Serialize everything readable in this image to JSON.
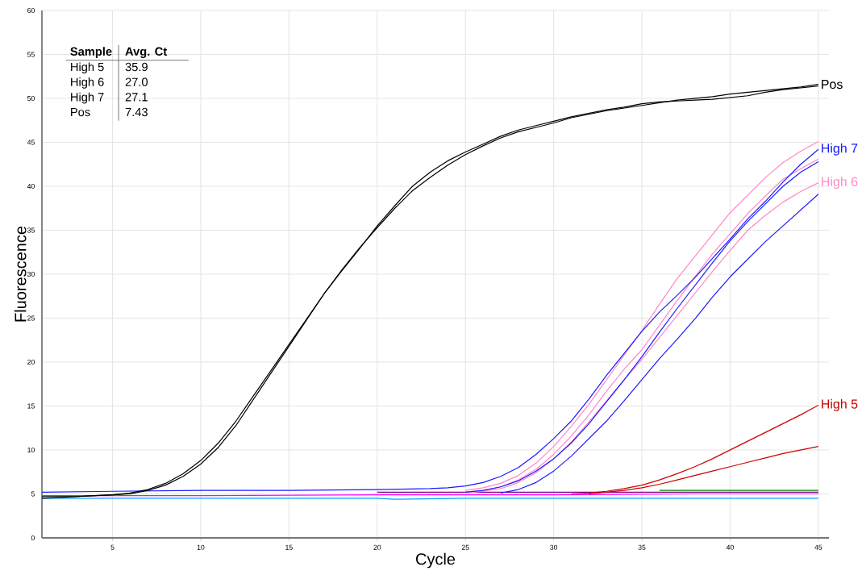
{
  "chart_data": {
    "type": "line",
    "xlabel": "Cycle",
    "ylabel": "Fluorescence",
    "xlim": [
      1,
      45.6
    ],
    "ylim": [
      0,
      60
    ],
    "xticks": [
      5,
      10,
      15,
      20,
      25,
      30,
      35,
      40,
      45
    ],
    "yticks": [
      0,
      5,
      10,
      15,
      20,
      25,
      30,
      35,
      40,
      45,
      50,
      55,
      60
    ],
    "grid": true,
    "marker": "none",
    "line_style": "solid",
    "annotations": [
      "Sample",
      "Avg. Ct",
      "High 5",
      "35.9",
      "High 6",
      "27.0",
      "High 7",
      "27.1",
      "Pos",
      "7.43"
    ],
    "series": [
      {
        "color": "#00a0ff",
        "x": [
          1,
          10,
          20,
          21,
          25,
          30,
          38,
          45
        ],
        "values": [
          4.5,
          4.5,
          4.5,
          4.4,
          4.5,
          4.5,
          4.5,
          4.5
        ]
      },
      {
        "color": "#ff00ff",
        "x": [
          1,
          10,
          20,
          30,
          38,
          45
        ],
        "values": [
          4.8,
          4.8,
          4.9,
          4.9,
          5.0,
          5.0
        ]
      },
      {
        "color": "#800080",
        "x": [
          20,
          30,
          38,
          45
        ],
        "values": [
          5.2,
          5.2,
          5.2,
          5.2
        ]
      },
      {
        "name": "High 5",
        "color": "#cc0000",
        "x": [
          31,
          32,
          33,
          34,
          35,
          36,
          37,
          38,
          39,
          40,
          41,
          42,
          43,
          44,
          45
        ],
        "values": [
          5.0,
          5.1,
          5.3,
          5.6,
          6.0,
          6.6,
          7.3,
          8.1,
          9.0,
          10.0,
          11.0,
          12.0,
          13.0,
          14.0,
          15.1
        ]
      },
      {
        "color": "#cc0000",
        "x": [
          32,
          33,
          34,
          35,
          36,
          37,
          38,
          39,
          40,
          41,
          42,
          43,
          44,
          45
        ],
        "values": [
          5.0,
          5.2,
          5.4,
          5.7,
          6.1,
          6.6,
          7.1,
          7.6,
          8.1,
          8.6,
          9.1,
          9.6,
          10.0,
          10.4
        ]
      },
      {
        "color": "#ff88c8",
        "x": [
          25,
          26,
          27,
          28,
          29,
          30,
          31,
          32,
          33,
          34,
          35,
          36,
          37,
          38,
          39,
          40,
          41,
          42,
          43,
          44,
          45
        ],
        "values": [
          5.4,
          5.7,
          6.2,
          7.1,
          8.5,
          10.4,
          12.7,
          15.2,
          18.0,
          20.8,
          23.6,
          26.6,
          29.5,
          32.0,
          34.5,
          37.0,
          39.0,
          41.0,
          42.7,
          44.0,
          45.1
        ]
      },
      {
        "color": "#ff88c8",
        "x": [
          25,
          26,
          27,
          28,
          29,
          30,
          31,
          32,
          33,
          34,
          35,
          36,
          37,
          38,
          39,
          40,
          41,
          42,
          43,
          44,
          45
        ],
        "values": [
          5.2,
          5.4,
          5.8,
          6.6,
          7.8,
          9.5,
          11.6,
          14.0,
          16.7,
          19.2,
          21.4,
          24.2,
          27.0,
          29.7,
          32.3,
          34.6,
          36.9,
          38.9,
          40.8,
          42.0,
          43.1
        ]
      },
      {
        "name": "High 6",
        "color": "#ff88c8",
        "x": [
          25,
          26,
          27,
          28,
          29,
          30,
          31,
          32,
          33,
          34,
          35,
          36,
          37,
          38,
          39,
          40,
          41,
          42,
          43,
          44,
          45
        ],
        "values": [
          5.1,
          5.3,
          5.6,
          6.3,
          7.4,
          9.0,
          10.9,
          13.2,
          15.6,
          18.0,
          20.3,
          22.8,
          25.3,
          27.8,
          30.3,
          32.7,
          35.0,
          36.7,
          38.2,
          39.4,
          40.4
        ]
      },
      {
        "name": "High 7",
        "color": "#1a1aff",
        "x": [
          1,
          5,
          10,
          15,
          20,
          23,
          24,
          25,
          26,
          27,
          28,
          29,
          30,
          31,
          32,
          33,
          34,
          35,
          36,
          37,
          38,
          39,
          40,
          41,
          42,
          43,
          44,
          45
        ],
        "values": [
          5.2,
          5.3,
          5.4,
          5.4,
          5.5,
          5.6,
          5.7,
          5.9,
          6.3,
          7.0,
          8.0,
          9.5,
          11.3,
          13.3,
          15.8,
          18.5,
          21.0,
          23.5,
          25.7,
          27.6,
          29.6,
          31.8,
          34.0,
          36.3,
          38.3,
          40.5,
          42.5,
          44.2
        ]
      },
      {
        "color": "#1a1aff",
        "x": [
          25,
          26,
          27,
          28,
          29,
          30,
          31,
          32,
          33,
          34,
          35,
          36,
          37,
          38,
          39,
          40,
          41,
          42,
          43,
          44,
          45
        ],
        "values": [
          5.2,
          5.4,
          5.8,
          6.5,
          7.6,
          9.0,
          10.8,
          13.0,
          15.5,
          18.0,
          20.6,
          23.4,
          26.1,
          28.7,
          31.3,
          33.8,
          36.0,
          38.0,
          40.0,
          41.6,
          42.8
        ]
      },
      {
        "color": "#1a1aff",
        "x": [
          27,
          28,
          29,
          30,
          31,
          32,
          33,
          34,
          35,
          36,
          37,
          38,
          39,
          40,
          41,
          42,
          43,
          44,
          45
        ],
        "values": [
          5.1,
          5.5,
          6.3,
          7.6,
          9.3,
          11.3,
          13.3,
          15.6,
          18.0,
          20.4,
          22.6,
          24.9,
          27.4,
          29.7,
          31.7,
          33.7,
          35.5,
          37.3,
          39.1
        ]
      },
      {
        "name": "Pos",
        "color": "#000000",
        "x": [
          1,
          2,
          3,
          4,
          5,
          6,
          7,
          8,
          9,
          10,
          11,
          12,
          13,
          14,
          15,
          16,
          17,
          18,
          19,
          20,
          21,
          22,
          23,
          24,
          25,
          26,
          27,
          28,
          29,
          30,
          31,
          32,
          33,
          34,
          35,
          36,
          37,
          38,
          39,
          40,
          41,
          42,
          43,
          44,
          45
        ],
        "values": [
          4.7,
          4.7,
          4.7,
          4.8,
          4.9,
          5.0,
          5.4,
          6.0,
          7.0,
          8.4,
          10.3,
          12.8,
          15.8,
          18.8,
          21.8,
          24.8,
          27.8,
          30.5,
          33.0,
          35.3,
          37.5,
          39.5,
          41.0,
          42.4,
          43.6,
          44.6,
          45.5,
          46.2,
          46.7,
          47.2,
          47.8,
          48.2,
          48.6,
          48.9,
          49.2,
          49.5,
          49.8,
          50.0,
          50.2,
          50.5,
          50.7,
          50.9,
          51.1,
          51.3,
          51.6
        ]
      },
      {
        "color": "#000000",
        "x": [
          1,
          2,
          3,
          4,
          5,
          6,
          7,
          8,
          9,
          10,
          11,
          12,
          13,
          14,
          15,
          16,
          17,
          18,
          19,
          20,
          21,
          22,
          23,
          24,
          25,
          26,
          27,
          28,
          29,
          30,
          31,
          32,
          33,
          34,
          35,
          36,
          37,
          38,
          39,
          40,
          41,
          42,
          43,
          44,
          45
        ],
        "values": [
          4.5,
          4.6,
          4.7,
          4.8,
          4.9,
          5.1,
          5.5,
          6.2,
          7.3,
          8.8,
          10.8,
          13.3,
          16.2,
          19.1,
          22.0,
          24.9,
          27.8,
          30.4,
          32.9,
          35.5,
          37.8,
          40.0,
          41.6,
          42.9,
          43.9,
          44.8,
          45.7,
          46.4,
          46.9,
          47.4,
          47.9,
          48.3,
          48.7,
          49.0,
          49.4,
          49.6,
          49.7,
          49.8,
          49.9,
          50.1,
          50.3,
          50.7,
          51.0,
          51.2,
          51.4
        ]
      },
      {
        "color": "#008000",
        "x": [
          36,
          40,
          45
        ],
        "values": [
          5.4,
          5.4,
          5.4
        ]
      }
    ]
  }
}
